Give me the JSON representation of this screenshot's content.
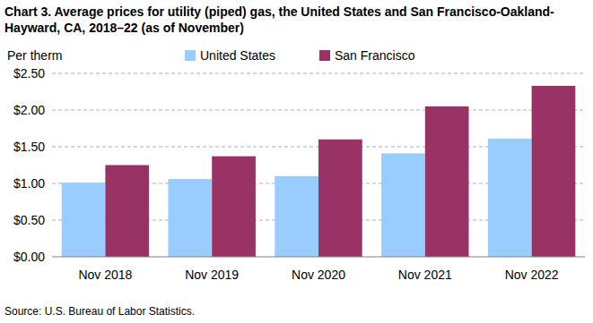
{
  "chart_data": {
    "type": "bar",
    "title": "Chart 3. Average prices for utility (piped) gas, the United States and San Francisco-Oakland-Hayward, CA, 2018–22 (as of November)",
    "y_label": "Per therm",
    "source": "Source: U.S. Bureau of Labor Statistics.",
    "categories": [
      "Nov 2018",
      "Nov 2019",
      "Nov 2020",
      "Nov 2021",
      "Nov 2022"
    ],
    "series": [
      {
        "name": "United States",
        "color": "#99ccff",
        "values": [
          1.01,
          1.06,
          1.1,
          1.41,
          1.61
        ]
      },
      {
        "name": "San Francisco",
        "color": "#993366",
        "values": [
          1.25,
          1.37,
          1.6,
          2.05,
          2.33
        ]
      }
    ],
    "ylim": [
      0,
      2.5
    ],
    "yticks": [
      {
        "value": 0,
        "label": "$0.00"
      },
      {
        "value": 0.5,
        "label": "$0.50"
      },
      {
        "value": 1,
        "label": "$1.00"
      },
      {
        "value": 1.5,
        "label": "$1.50"
      },
      {
        "value": 2,
        "label": "$2.00"
      },
      {
        "value": 2.5,
        "label": "$2.50"
      }
    ],
    "grid": true,
    "legend": "top"
  }
}
